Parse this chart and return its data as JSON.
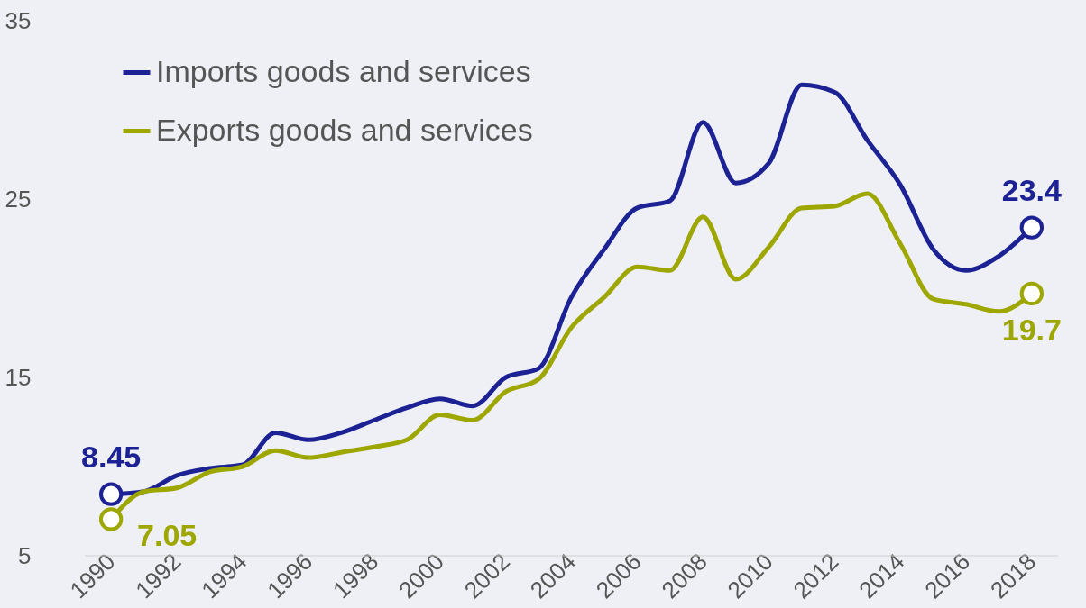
{
  "chart_data": {
    "type": "line",
    "x": [
      1990,
      1991,
      1992,
      1993,
      1994,
      1995,
      1996,
      1997,
      1998,
      1999,
      2000,
      2001,
      2002,
      2003,
      2004,
      2005,
      2006,
      2007,
      2008,
      2009,
      2010,
      2011,
      2012,
      2013,
      2014,
      2015,
      2016,
      2017,
      2018
    ],
    "series": [
      {
        "name": "Imports goods and services",
        "color": "#1c2294",
        "values": [
          8.45,
          8.6,
          9.5,
          9.9,
          10.1,
          11.9,
          11.5,
          11.9,
          12.6,
          13.3,
          13.8,
          13.4,
          15.0,
          15.5,
          19.5,
          22.2,
          24.5,
          24.9,
          29.3,
          25.9,
          27.0,
          31.4,
          31.0,
          28.3,
          25.8,
          22.2,
          21.0,
          21.8,
          23.4
        ],
        "value_labels": [
          "8.45",
          null,
          null,
          null,
          null,
          null,
          null,
          null,
          null,
          null,
          null,
          null,
          null,
          null,
          null,
          null,
          null,
          null,
          null,
          null,
          null,
          null,
          null,
          null,
          null,
          null,
          null,
          null,
          "23.4"
        ]
      },
      {
        "name": "Exports goods and services",
        "color": "#9ea600",
        "values": [
          7.05,
          8.6,
          8.8,
          9.7,
          10.0,
          10.9,
          10.5,
          10.8,
          11.1,
          11.5,
          12.9,
          12.6,
          14.2,
          14.9,
          17.8,
          19.5,
          21.2,
          21.0,
          24.0,
          20.5,
          22.3,
          24.5,
          24.6,
          25.3,
          22.5,
          19.4,
          19.1,
          18.7,
          19.7
        ],
        "value_labels": [
          "7.05",
          null,
          null,
          null,
          null,
          null,
          null,
          null,
          null,
          null,
          null,
          null,
          null,
          null,
          null,
          null,
          null,
          null,
          null,
          null,
          null,
          null,
          null,
          null,
          null,
          null,
          null,
          null,
          "19.7"
        ]
      }
    ],
    "xlim": [
      1989.2,
      2018.8
    ],
    "xticks": [
      1990,
      1992,
      1994,
      1996,
      1998,
      2000,
      2002,
      2004,
      2006,
      2008,
      2010,
      2012,
      2014,
      2016,
      2018
    ],
    "ylim": [
      5,
      35
    ],
    "yticks": [
      5,
      15,
      25,
      35
    ],
    "grid": false,
    "legend": "top left",
    "line_style": "solid"
  }
}
